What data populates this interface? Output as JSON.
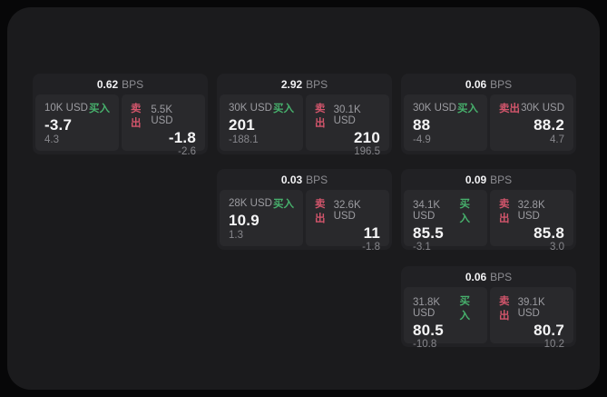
{
  "labels": {
    "bps_unit": "BPS",
    "buy": "买入",
    "sell": "卖出"
  },
  "colors": {
    "buy_green": "#47b06c",
    "sell_red": "#d2556b",
    "panel_bg": "#1b1b1d",
    "card_bg": "#212124",
    "tile_bg": "#29292c"
  },
  "cards": [
    {
      "bps": "0.62",
      "buy": {
        "amount": "10K USD",
        "price": "-3.7",
        "delta": "4.3"
      },
      "sell": {
        "amount": "5.5K USD",
        "price": "-1.8",
        "delta": "-2.6"
      }
    },
    {
      "bps": "2.92",
      "buy": {
        "amount": "30K USD",
        "price": "201",
        "delta": "-188.1"
      },
      "sell": {
        "amount": "30.1K USD",
        "price": "210",
        "delta": "196.5"
      }
    },
    {
      "bps": "0.06",
      "buy": {
        "amount": "30K USD",
        "price": "88",
        "delta": "-4.9"
      },
      "sell": {
        "amount": "30K USD",
        "price": "88.2",
        "delta": "4.7"
      }
    },
    {
      "bps": "0.03",
      "buy": {
        "amount": "28K USD",
        "price": "10.9",
        "delta": "1.3"
      },
      "sell": {
        "amount": "32.6K USD",
        "price": "11",
        "delta": "-1.8"
      }
    },
    {
      "bps": "0.09",
      "buy": {
        "amount": "34.1K USD",
        "price": "85.5",
        "delta": "-3.1"
      },
      "sell": {
        "amount": "32.8K USD",
        "price": "85.8",
        "delta": "3.0"
      }
    },
    {
      "bps": "0.06",
      "buy": {
        "amount": "31.8K USD",
        "price": "80.5",
        "delta": "-10.8"
      },
      "sell": {
        "amount": "39.1K USD",
        "price": "80.7",
        "delta": "10.2"
      }
    }
  ]
}
